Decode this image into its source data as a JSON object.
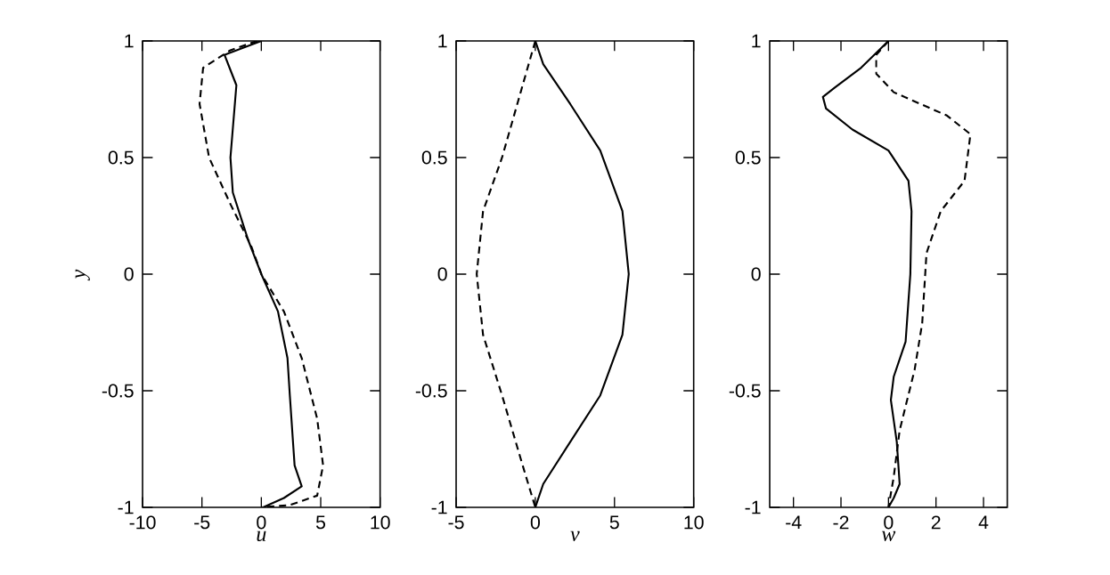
{
  "chart_data": [
    {
      "type": "line",
      "ylabel": "y",
      "xlabel": "u",
      "xlim": [
        -10,
        10
      ],
      "ylim": [
        -1,
        1
      ],
      "xticks": [
        -10,
        -5,
        0,
        5,
        10
      ],
      "yticks": [
        -1,
        -0.5,
        0,
        0.5,
        1
      ],
      "series": [
        {
          "color": "#000000",
          "line_style": "solid",
          "x": [
            0,
            -3.1,
            -2.1,
            -2.6,
            -2.4,
            -1.1,
            0,
            1.4,
            2.2,
            2.4,
            2.8,
            3.4,
            1.9,
            0.15
          ],
          "values": [
            1,
            0.94,
            0.81,
            0.5,
            0.35,
            0.145,
            0,
            -0.16,
            -0.36,
            -0.52,
            -0.82,
            -0.91,
            -0.96,
            -1
          ]
        },
        {
          "color": "#000000",
          "line_style": "dashed",
          "x": [
            -0.35,
            -2.6,
            -4.9,
            -5.2,
            -4.4,
            -2.6,
            -0.85,
            0,
            1.9,
            3.4,
            4.7,
            5.2,
            4.7,
            2.4,
            0
          ],
          "values": [
            1,
            0.96,
            0.885,
            0.73,
            0.5,
            0.3,
            0.12,
            0,
            -0.16,
            -0.36,
            -0.62,
            -0.82,
            -0.95,
            -0.99,
            -1
          ]
        }
      ]
    },
    {
      "type": "line",
      "xlabel": "v",
      "xlim": [
        -5,
        10
      ],
      "ylim": [
        -1,
        1
      ],
      "xticks": [
        -5,
        0,
        5,
        10
      ],
      "yticks": [
        -1,
        -0.5,
        0,
        0.5,
        1
      ],
      "series": [
        {
          "color": "#000000",
          "line_style": "solid",
          "x": [
            0,
            0.5,
            2.2,
            4.1,
            5.5,
            5.9,
            5.5,
            4.1,
            2.2,
            0.5,
            0
          ],
          "values": [
            1,
            0.9,
            0.73,
            0.53,
            0.27,
            0,
            -0.26,
            -0.52,
            -0.72,
            -0.9,
            -1
          ]
        },
        {
          "color": "#000000",
          "line_style": "dashed",
          "x": [
            0,
            -0.8,
            -2.1,
            -3.3,
            -3.7,
            -3.3,
            -2.1,
            -0.8,
            0
          ],
          "values": [
            1,
            0.81,
            0.5,
            0.27,
            0,
            -0.26,
            -0.52,
            -0.82,
            -1
          ]
        }
      ]
    },
    {
      "type": "line",
      "xlabel": "w",
      "xlim": [
        -5,
        5
      ],
      "ylim": [
        -1,
        1
      ],
      "xticks": [
        -4,
        -2,
        0,
        2,
        4
      ],
      "yticks": [
        -1,
        -0.5,
        0,
        0.5,
        1
      ],
      "series": [
        {
          "color": "#000000",
          "line_style": "solid",
          "x": [
            0,
            -1.15,
            -2.26,
            -2.76,
            -2.63,
            -1.52,
            0,
            0.84,
            0.97,
            0.92,
            0.72,
            0.22,
            0.1,
            0.35,
            0.47,
            0.22,
            0
          ],
          "values": [
            1,
            0.885,
            0.8,
            0.76,
            0.71,
            0.62,
            0.53,
            0.4,
            0.27,
            0,
            -0.29,
            -0.44,
            -0.54,
            -0.72,
            -0.9,
            -0.96,
            -1
          ]
        },
        {
          "color": "#000000",
          "line_style": "dashed",
          "x": [
            0,
            -0.52,
            -0.52,
            0.22,
            2.46,
            3.45,
            3.2,
            2.2,
            1.6,
            1.42,
            1.1,
            0.47,
            0.22,
            0
          ],
          "values": [
            1,
            0.94,
            0.86,
            0.78,
            0.68,
            0.6,
            0.4,
            0.27,
            0.09,
            -0.21,
            -0.41,
            -0.67,
            -0.87,
            -1
          ]
        }
      ]
    }
  ]
}
